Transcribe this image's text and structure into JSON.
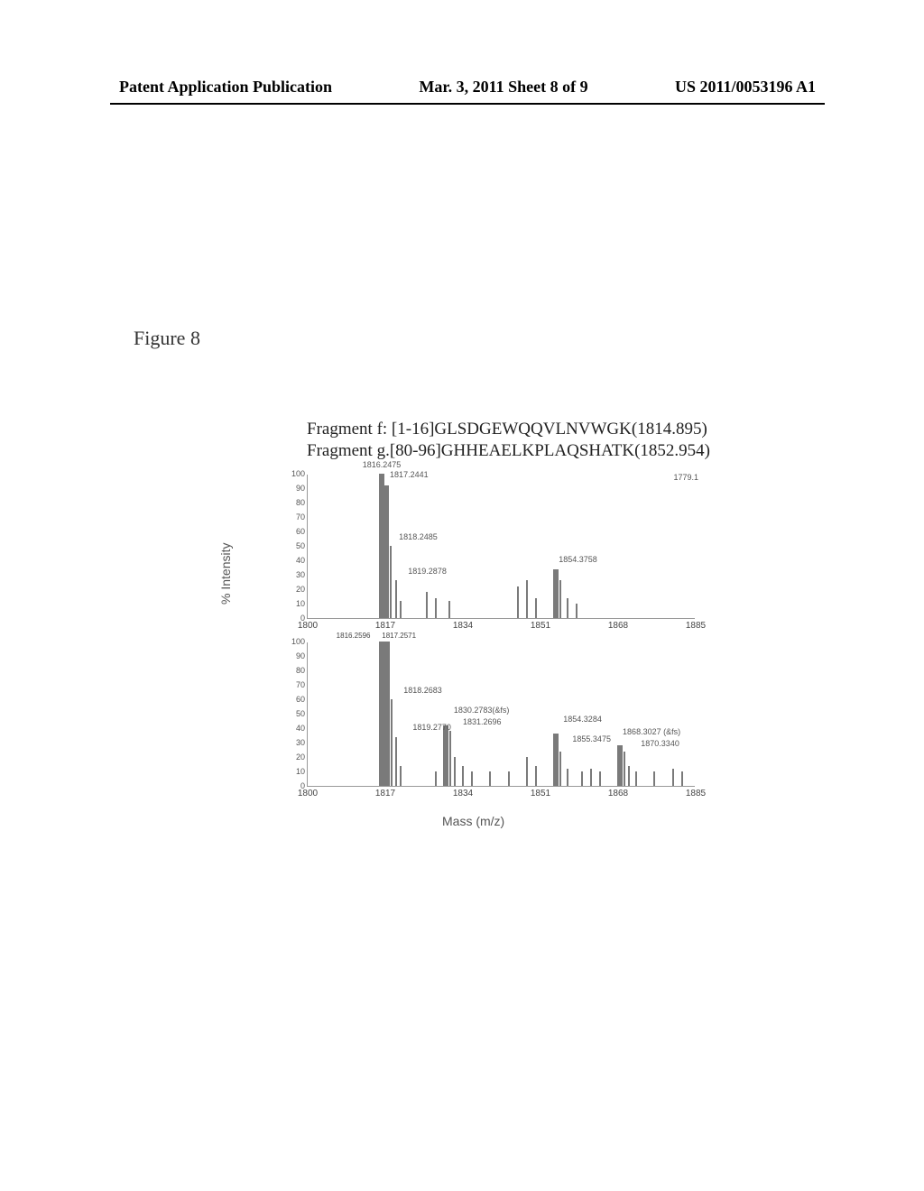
{
  "header": {
    "left": "Patent Application Publication",
    "center": "Mar. 3, 2011  Sheet 8 of 9",
    "right": "US 2011/0053196 A1"
  },
  "figure_caption": "Figure 8",
  "fragments": {
    "line1": "Fragment f: [1-16]GLSDGEWQQVLNVWGK(1814.895)",
    "line2": "Fragment g.[80-96]GHHEAELKPLAQSHATK(1852.954)"
  },
  "axis": {
    "ylabel": "% Intensity",
    "xlabel": "Mass (m/z)",
    "xlim": [
      1800,
      1885
    ],
    "yticks": [
      0,
      10,
      20,
      30,
      40,
      50,
      60,
      70,
      80,
      90,
      100
    ],
    "xticks": [
      1800,
      1817,
      1834,
      1851,
      1868,
      1885
    ]
  },
  "panels": {
    "top": {
      "rt_label": "1779.1",
      "bars": [
        {
          "mz": 1816.2,
          "h": 100,
          "thick": true
        },
        {
          "mz": 1817.2,
          "h": 92,
          "thick": true
        },
        {
          "mz": 1818.2,
          "h": 50
        },
        {
          "mz": 1819.3,
          "h": 26
        },
        {
          "mz": 1820.3,
          "h": 12
        },
        {
          "mz": 1826.0,
          "h": 18
        },
        {
          "mz": 1828.0,
          "h": 14
        },
        {
          "mz": 1831.0,
          "h": 12
        },
        {
          "mz": 1846.0,
          "h": 22
        },
        {
          "mz": 1848.0,
          "h": 26
        },
        {
          "mz": 1850.0,
          "h": 14
        },
        {
          "mz": 1854.4,
          "h": 34,
          "thick": true
        },
        {
          "mz": 1855.4,
          "h": 26
        },
        {
          "mz": 1857.0,
          "h": 14
        },
        {
          "mz": 1859.0,
          "h": 10
        }
      ],
      "labels": [
        {
          "text": "1816.2475",
          "mz": 1812,
          "y": 102
        },
        {
          "text": "1817.2441",
          "mz": 1818,
          "y": 95
        },
        {
          "text": "1818.2485",
          "mz": 1820,
          "y": 52
        },
        {
          "text": "1819.2878",
          "mz": 1822,
          "y": 28
        },
        {
          "text": "1854.3758",
          "mz": 1855,
          "y": 36
        }
      ],
      "subtick_labels": [
        {
          "text": "1816.2596",
          "mz": 1810
        },
        {
          "text": "1817.2571",
          "mz": 1820
        }
      ]
    },
    "bot": {
      "bars": [
        {
          "mz": 1816.3,
          "h": 100,
          "thick": true
        },
        {
          "mz": 1817.3,
          "h": 100,
          "thick": true
        },
        {
          "mz": 1818.3,
          "h": 60
        },
        {
          "mz": 1819.3,
          "h": 34
        },
        {
          "mz": 1820.3,
          "h": 14
        },
        {
          "mz": 1828.0,
          "h": 10
        },
        {
          "mz": 1830.3,
          "h": 42,
          "thick": true
        },
        {
          "mz": 1831.3,
          "h": 38
        },
        {
          "mz": 1832.3,
          "h": 20
        },
        {
          "mz": 1834.0,
          "h": 14
        },
        {
          "mz": 1836.0,
          "h": 10
        },
        {
          "mz": 1840.0,
          "h": 10
        },
        {
          "mz": 1844.0,
          "h": 10
        },
        {
          "mz": 1848.0,
          "h": 20
        },
        {
          "mz": 1850.0,
          "h": 14
        },
        {
          "mz": 1854.3,
          "h": 36,
          "thick": true
        },
        {
          "mz": 1855.3,
          "h": 24
        },
        {
          "mz": 1857.0,
          "h": 12
        },
        {
          "mz": 1860.0,
          "h": 10
        },
        {
          "mz": 1862.0,
          "h": 12
        },
        {
          "mz": 1864.0,
          "h": 10
        },
        {
          "mz": 1868.3,
          "h": 28,
          "thick": true
        },
        {
          "mz": 1869.3,
          "h": 24
        },
        {
          "mz": 1870.3,
          "h": 14
        },
        {
          "mz": 1872.0,
          "h": 10
        },
        {
          "mz": 1876.0,
          "h": 10
        },
        {
          "mz": 1880.0,
          "h": 12
        },
        {
          "mz": 1882.0,
          "h": 10
        }
      ],
      "labels": [
        {
          "text": "1818.2683",
          "mz": 1821,
          "y": 62
        },
        {
          "text": "1819.2770",
          "mz": 1823,
          "y": 36
        },
        {
          "text": "1830.2783(&fs)",
          "mz": 1832,
          "y": 48
        },
        {
          "text": "1831.2696",
          "mz": 1834,
          "y": 40
        },
        {
          "text": "1854.3284",
          "mz": 1856,
          "y": 42
        },
        {
          "text": "1855.3475",
          "mz": 1858,
          "y": 28
        },
        {
          "text": "1868.3027 (&fs)",
          "mz": 1869,
          "y": 33
        },
        {
          "text": "1870.3340",
          "mz": 1873,
          "y": 25
        }
      ]
    }
  },
  "style": {
    "bar_color": "#7a7a7a",
    "axis_color": "#999999",
    "text_color": "#555555",
    "background": "#ffffff"
  }
}
